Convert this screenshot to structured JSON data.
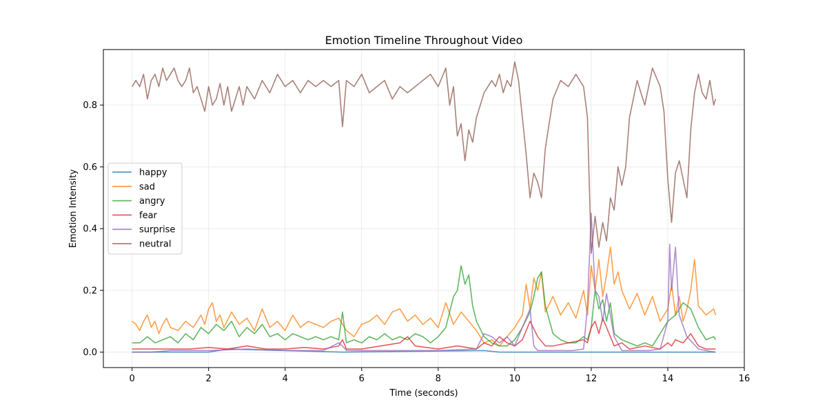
{
  "chart_data": {
    "type": "line",
    "title": "Emotion Timeline Throughout Video",
    "xlabel": "Time (seconds)",
    "ylabel": "Emotion Intensity",
    "xlim": [
      -0.75,
      16
    ],
    "ylim": [
      -0.05,
      0.98
    ],
    "xticks": [
      0,
      2,
      4,
      6,
      8,
      10,
      12,
      14,
      16
    ],
    "xtick_labels": [
      "0",
      "2",
      "4",
      "6",
      "8",
      "10",
      "12",
      "14",
      "16"
    ],
    "yticks": [
      0.0,
      0.2,
      0.4,
      0.6,
      0.8
    ],
    "ytick_labels": [
      "0.0",
      "0.2",
      "0.4",
      "0.6",
      "0.8"
    ],
    "grid": true,
    "legend_position": "center-left",
    "series": [
      {
        "name": "happy",
        "color": "#1f77b4",
        "x": [
          0,
          2,
          2.5,
          5.5,
          9.2,
          9.6,
          10,
          12,
          15.25
        ],
        "y": [
          0.0,
          0.0,
          0.01,
          0.0,
          0.005,
          0.0,
          0.0,
          0.0,
          0.0
        ]
      },
      {
        "name": "sad",
        "color": "#ff7f0e",
        "x": [
          0,
          0.1,
          0.2,
          0.3,
          0.4,
          0.5,
          0.6,
          0.7,
          0.8,
          0.9,
          1.0,
          1.2,
          1.4,
          1.6,
          1.8,
          1.9,
          2.0,
          2.1,
          2.2,
          2.3,
          2.4,
          2.6,
          2.8,
          3.0,
          3.2,
          3.4,
          3.6,
          3.8,
          4.0,
          4.2,
          4.4,
          4.6,
          4.8,
          5.0,
          5.2,
          5.4,
          5.6,
          5.8,
          6.0,
          6.2,
          6.4,
          6.6,
          6.8,
          7.0,
          7.2,
          7.4,
          7.6,
          7.8,
          8.0,
          8.2,
          8.4,
          8.6,
          8.8,
          9.0,
          9.2,
          9.4,
          9.6,
          9.8,
          10.0,
          10.2,
          10.3,
          10.4,
          10.5,
          10.6,
          10.7,
          10.8,
          11.0,
          11.2,
          11.4,
          11.6,
          11.8,
          11.9,
          12.0,
          12.1,
          12.2,
          12.3,
          12.4,
          12.5,
          12.6,
          12.7,
          12.8,
          13.0,
          13.2,
          13.4,
          13.6,
          13.8,
          14.0,
          14.1,
          14.2,
          14.3,
          14.4,
          14.5,
          14.6,
          14.7,
          14.8,
          15.0,
          15.2,
          15.25
        ],
        "y": [
          0.1,
          0.09,
          0.07,
          0.1,
          0.12,
          0.08,
          0.1,
          0.06,
          0.09,
          0.11,
          0.08,
          0.07,
          0.1,
          0.08,
          0.12,
          0.09,
          0.14,
          0.16,
          0.1,
          0.12,
          0.08,
          0.13,
          0.09,
          0.11,
          0.07,
          0.14,
          0.08,
          0.1,
          0.07,
          0.12,
          0.08,
          0.1,
          0.09,
          0.08,
          0.1,
          0.11,
          0.07,
          0.05,
          0.09,
          0.1,
          0.12,
          0.09,
          0.13,
          0.14,
          0.1,
          0.12,
          0.09,
          0.11,
          0.08,
          0.16,
          0.09,
          0.13,
          0.1,
          0.07,
          0.03,
          0.04,
          0.02,
          0.05,
          0.08,
          0.12,
          0.22,
          0.14,
          0.24,
          0.2,
          0.26,
          0.13,
          0.18,
          0.12,
          0.16,
          0.11,
          0.2,
          0.12,
          0.28,
          0.2,
          0.3,
          0.18,
          0.25,
          0.34,
          0.22,
          0.26,
          0.2,
          0.14,
          0.19,
          0.12,
          0.18,
          0.1,
          0.14,
          0.22,
          0.12,
          0.18,
          0.1,
          0.14,
          0.2,
          0.3,
          0.15,
          0.12,
          0.14,
          0.12
        ]
      },
      {
        "name": "angry",
        "color": "#2ca02c",
        "x": [
          0,
          0.2,
          0.4,
          0.6,
          0.8,
          1.0,
          1.2,
          1.4,
          1.6,
          1.8,
          2.0,
          2.2,
          2.4,
          2.6,
          2.8,
          3.0,
          3.2,
          3.4,
          3.6,
          3.8,
          4.0,
          4.2,
          4.4,
          4.6,
          4.8,
          5.0,
          5.2,
          5.4,
          5.5,
          5.6,
          5.8,
          6.0,
          6.2,
          6.4,
          6.6,
          6.8,
          7.0,
          7.2,
          7.4,
          7.6,
          7.8,
          8.0,
          8.2,
          8.4,
          8.5,
          8.6,
          8.7,
          8.8,
          8.9,
          9.0,
          9.2,
          9.4,
          9.6,
          9.8,
          10.0,
          10.2,
          10.4,
          10.5,
          10.6,
          10.7,
          10.8,
          11.0,
          11.2,
          11.4,
          11.6,
          11.8,
          11.9,
          12.0,
          12.1,
          12.2,
          12.3,
          12.4,
          12.5,
          12.6,
          12.8,
          13.0,
          13.2,
          13.4,
          13.6,
          13.8,
          14.0,
          14.2,
          14.4,
          14.6,
          14.8,
          15.0,
          15.2,
          15.25
        ],
        "y": [
          0.03,
          0.03,
          0.05,
          0.03,
          0.04,
          0.05,
          0.03,
          0.06,
          0.04,
          0.08,
          0.06,
          0.09,
          0.07,
          0.1,
          0.05,
          0.08,
          0.06,
          0.09,
          0.05,
          0.06,
          0.04,
          0.06,
          0.05,
          0.04,
          0.05,
          0.04,
          0.05,
          0.04,
          0.13,
          0.03,
          0.04,
          0.03,
          0.05,
          0.04,
          0.06,
          0.04,
          0.05,
          0.04,
          0.06,
          0.05,
          0.03,
          0.05,
          0.08,
          0.18,
          0.2,
          0.28,
          0.22,
          0.25,
          0.15,
          0.1,
          0.05,
          0.03,
          0.02,
          0.02,
          0.04,
          0.08,
          0.13,
          0.18,
          0.24,
          0.26,
          0.15,
          0.06,
          0.04,
          0.03,
          0.03,
          0.05,
          0.04,
          0.08,
          0.2,
          0.14,
          0.17,
          0.1,
          0.16,
          0.06,
          0.04,
          0.03,
          0.02,
          0.03,
          0.02,
          0.06,
          0.1,
          0.12,
          0.16,
          0.14,
          0.08,
          0.04,
          0.05,
          0.04
        ]
      },
      {
        "name": "fear",
        "color": "#d62728",
        "x": [
          0,
          0.5,
          1.0,
          1.5,
          2.0,
          2.5,
          3.0,
          3.5,
          4.0,
          4.5,
          5.0,
          5.4,
          5.5,
          5.6,
          6.0,
          6.5,
          7.0,
          7.2,
          7.4,
          8.0,
          8.5,
          9.0,
          9.2,
          9.4,
          9.6,
          9.8,
          10.0,
          10.2,
          10.4,
          10.6,
          10.8,
          11.0,
          11.4,
          11.8,
          11.9,
          12.0,
          12.1,
          12.2,
          12.3,
          12.4,
          12.5,
          12.6,
          12.8,
          13.0,
          13.4,
          13.8,
          14.0,
          14.1,
          14.2,
          14.4,
          14.6,
          14.8,
          15.0,
          15.25
        ],
        "y": [
          0.01,
          0.01,
          0.01,
          0.01,
          0.015,
          0.01,
          0.02,
          0.01,
          0.01,
          0.015,
          0.01,
          0.02,
          0.04,
          0.01,
          0.01,
          0.02,
          0.03,
          0.05,
          0.02,
          0.01,
          0.02,
          0.01,
          0.03,
          0.02,
          0.05,
          0.03,
          0.02,
          0.04,
          0.1,
          0.05,
          0.02,
          0.02,
          0.03,
          0.04,
          0.03,
          0.08,
          0.1,
          0.06,
          0.11,
          0.08,
          0.05,
          0.02,
          0.03,
          0.01,
          0.02,
          0.01,
          0.03,
          0.02,
          0.04,
          0.03,
          0.06,
          0.02,
          0.01,
          0.01
        ]
      },
      {
        "name": "surprise",
        "color": "#9467bd",
        "x": [
          0,
          0.5,
          1.0,
          2.0,
          3.0,
          4.0,
          5.0,
          5.4,
          5.5,
          5.6,
          6.0,
          7.0,
          8.0,
          9.0,
          9.2,
          9.4,
          9.6,
          9.8,
          10.0,
          10.2,
          10.4,
          10.5,
          10.6,
          10.8,
          11.0,
          11.5,
          11.8,
          11.9,
          12.0,
          12.1,
          12.2,
          12.3,
          12.4,
          12.6,
          12.8,
          13.0,
          13.5,
          13.8,
          14.0,
          14.05,
          14.1,
          14.2,
          14.3,
          14.5,
          14.8,
          15.0,
          15.25
        ],
        "y": [
          0.0,
          0.0,
          0.005,
          0.005,
          0.01,
          0.005,
          0.005,
          0.03,
          0.02,
          0.005,
          0.005,
          0.005,
          0.005,
          0.01,
          0.06,
          0.05,
          0.03,
          0.05,
          0.02,
          0.08,
          0.14,
          0.02,
          0.005,
          0.005,
          0.005,
          0.005,
          0.01,
          0.15,
          0.45,
          0.2,
          0.18,
          0.1,
          0.19,
          0.05,
          0.005,
          0.005,
          0.005,
          0.01,
          0.1,
          0.35,
          0.2,
          0.34,
          0.12,
          0.05,
          0.01,
          0.005,
          0.0
        ]
      },
      {
        "name": "neutral",
        "color": "#8c564b",
        "x": [
          0,
          0.1,
          0.2,
          0.3,
          0.4,
          0.5,
          0.6,
          0.7,
          0.8,
          0.9,
          1.0,
          1.1,
          1.2,
          1.3,
          1.4,
          1.5,
          1.6,
          1.7,
          1.8,
          1.9,
          2.0,
          2.1,
          2.2,
          2.3,
          2.4,
          2.5,
          2.6,
          2.7,
          2.8,
          2.9,
          3.0,
          3.2,
          3.4,
          3.6,
          3.8,
          4.0,
          4.2,
          4.4,
          4.6,
          4.8,
          5.0,
          5.2,
          5.4,
          5.5,
          5.6,
          5.8,
          6.0,
          6.2,
          6.4,
          6.6,
          6.8,
          7.0,
          7.2,
          7.4,
          7.6,
          7.8,
          8.0,
          8.2,
          8.3,
          8.4,
          8.5,
          8.6,
          8.7,
          8.8,
          8.9,
          9.0,
          9.1,
          9.2,
          9.3,
          9.4,
          9.5,
          9.6,
          9.7,
          9.8,
          9.9,
          10.0,
          10.1,
          10.2,
          10.3,
          10.4,
          10.5,
          10.6,
          10.7,
          10.8,
          10.9,
          11.0,
          11.2,
          11.4,
          11.6,
          11.8,
          11.9,
          12.0,
          12.1,
          12.2,
          12.3,
          12.4,
          12.5,
          12.6,
          12.7,
          12.8,
          12.9,
          13.0,
          13.2,
          13.4,
          13.6,
          13.8,
          13.9,
          14.0,
          14.1,
          14.2,
          14.3,
          14.4,
          14.5,
          14.6,
          14.7,
          14.8,
          14.9,
          15.0,
          15.1,
          15.2,
          15.25
        ],
        "y": [
          0.86,
          0.88,
          0.86,
          0.9,
          0.82,
          0.88,
          0.9,
          0.86,
          0.92,
          0.88,
          0.9,
          0.92,
          0.88,
          0.86,
          0.88,
          0.92,
          0.84,
          0.86,
          0.82,
          0.78,
          0.86,
          0.8,
          0.82,
          0.87,
          0.8,
          0.86,
          0.78,
          0.82,
          0.86,
          0.8,
          0.86,
          0.82,
          0.88,
          0.84,
          0.9,
          0.86,
          0.88,
          0.84,
          0.88,
          0.86,
          0.88,
          0.86,
          0.88,
          0.73,
          0.88,
          0.86,
          0.9,
          0.84,
          0.86,
          0.88,
          0.82,
          0.86,
          0.84,
          0.86,
          0.88,
          0.9,
          0.86,
          0.92,
          0.8,
          0.86,
          0.7,
          0.74,
          0.62,
          0.72,
          0.68,
          0.76,
          0.8,
          0.84,
          0.86,
          0.88,
          0.86,
          0.9,
          0.84,
          0.88,
          0.86,
          0.94,
          0.88,
          0.76,
          0.64,
          0.5,
          0.58,
          0.55,
          0.5,
          0.66,
          0.74,
          0.82,
          0.88,
          0.86,
          0.9,
          0.86,
          0.76,
          0.32,
          0.44,
          0.34,
          0.42,
          0.36,
          0.5,
          0.46,
          0.6,
          0.54,
          0.6,
          0.76,
          0.88,
          0.8,
          0.92,
          0.86,
          0.78,
          0.56,
          0.42,
          0.58,
          0.62,
          0.56,
          0.5,
          0.72,
          0.84,
          0.9,
          0.84,
          0.82,
          0.88,
          0.8,
          0.82
        ]
      }
    ]
  }
}
